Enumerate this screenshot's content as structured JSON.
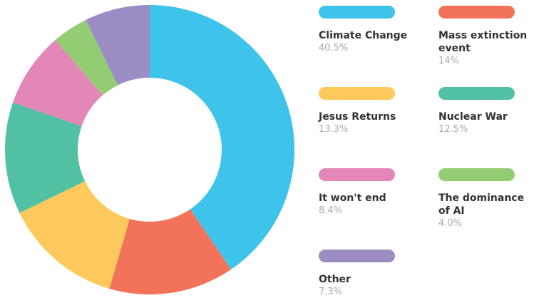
{
  "chart_data": {
    "type": "pie",
    "categories": [
      "Climate Change",
      "Mass extinction event",
      "Jesus Returns",
      "Nuclear War",
      "It won't end",
      "The dominance of AI",
      "Other"
    ],
    "values": [
      40.5,
      14,
      13.3,
      12.5,
      8.4,
      4.0,
      7.3
    ],
    "value_labels": [
      "40.5%",
      "14%",
      "13.3%",
      "12.5%",
      "8.4%",
      "4.0%",
      "7.3%"
    ],
    "colors": [
      "#3ec3ea",
      "#f27359",
      "#fdc95c",
      "#52c0a2",
      "#e386b8",
      "#92cd74",
      "#9b8cc4"
    ]
  }
}
